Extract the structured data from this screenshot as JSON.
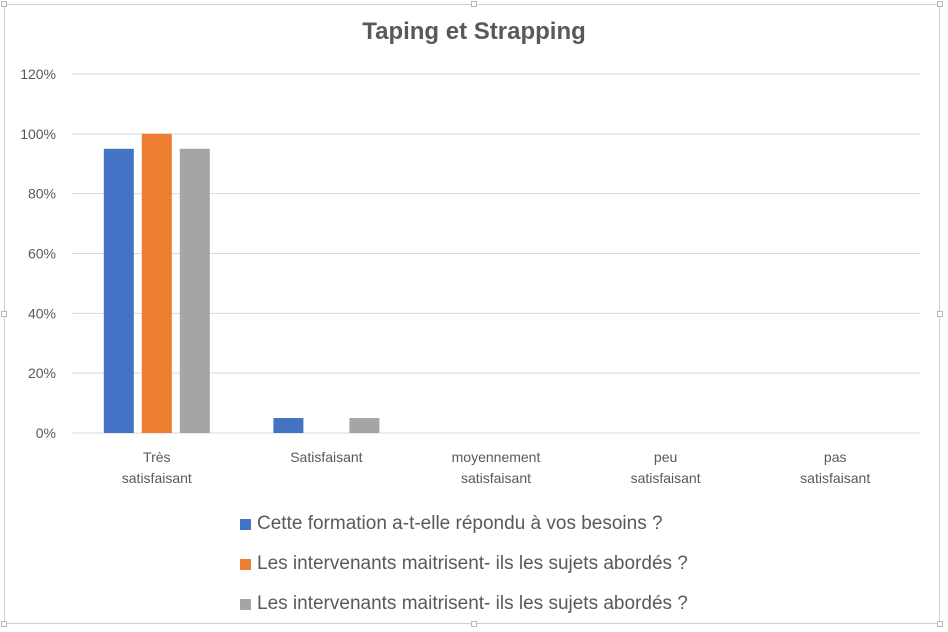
{
  "chart_data": {
    "type": "bar",
    "title": "Taping et Strapping",
    "categories": [
      "Très satisfaisant",
      "Satisfaisant",
      "moyennement satisfaisant",
      "peu satisfaisant",
      "pas satisfaisant"
    ],
    "series": [
      {
        "name": "Cette formation a-t-elle répondu à vos besoins ?",
        "color": "#4472c4",
        "values": [
          95,
          5,
          0,
          0,
          0
        ]
      },
      {
        "name": "Les intervenants maitrisent- ils les sujets abordés ?",
        "color": "#ed7d31",
        "values": [
          100,
          0,
          0,
          0,
          0
        ]
      },
      {
        "name": "Les intervenants maitrisent- ils les sujets abordés ?",
        "color": "#a5a5a5",
        "values": [
          95,
          5,
          0,
          0,
          0
        ]
      }
    ],
    "y_ticks": [
      "0%",
      "20%",
      "40%",
      "60%",
      "80%",
      "100%",
      "120%"
    ],
    "ylim": [
      0,
      120
    ],
    "grid": true,
    "legend_position": "bottom"
  }
}
